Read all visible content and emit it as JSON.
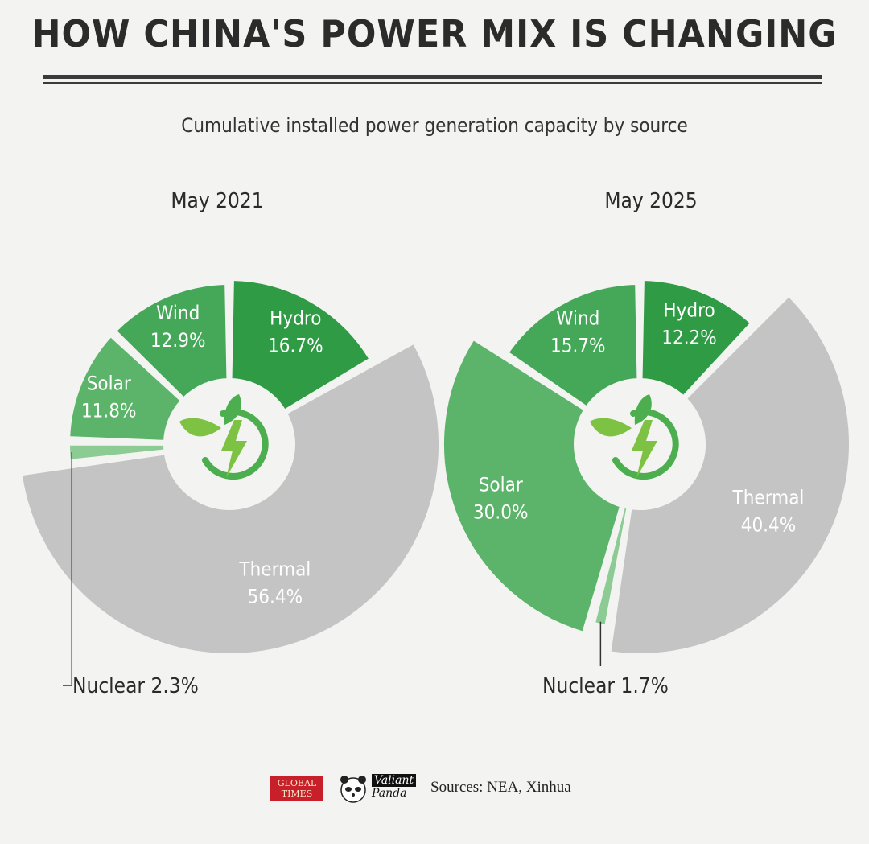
{
  "title": "HOW CHINA'S POWER MIX IS CHANGING",
  "subtitle": "Cumulative installed power generation capacity by source",
  "colors": {
    "hydro": "#2f9b45",
    "wind": "#45a858",
    "solar": "#5bb46a",
    "nuclear": "#8ccb93",
    "thermal": "#c4c4c4",
    "icon_green": "#4cae4f",
    "icon_bolt": "#7dc242"
  },
  "chart_data": [
    {
      "type": "pie",
      "period": "May 2021",
      "title": "May 2021",
      "slices": [
        {
          "name": "Hydro",
          "value": 16.7,
          "label": "16.7%"
        },
        {
          "name": "Thermal",
          "value": 56.4,
          "label": "56.4%"
        },
        {
          "name": "Nuclear",
          "value": 2.3,
          "label": "2.3%"
        },
        {
          "name": "Solar",
          "value": 11.8,
          "label": "11.8%"
        },
        {
          "name": "Wind",
          "value": 12.9,
          "label": "12.9%"
        }
      ],
      "nuclear_callout": "Nuclear 2.3%"
    },
    {
      "type": "pie",
      "period": "May 2025",
      "title": "May 2025",
      "slices": [
        {
          "name": "Hydro",
          "value": 12.2,
          "label": "12.2%"
        },
        {
          "name": "Thermal",
          "value": 40.4,
          "label": "40.4%"
        },
        {
          "name": "Nuclear",
          "value": 1.7,
          "label": "1.7%"
        },
        {
          "name": "Solar",
          "value": 30.0,
          "label": "30.0%"
        },
        {
          "name": "Wind",
          "value": 15.7,
          "label": "15.7%"
        }
      ],
      "nuclear_callout": "Nuclear 1.7%"
    }
  ],
  "footer": {
    "logo1": "GLOBAL TIMES",
    "logo2_line1": "Valiant",
    "logo2_line2": "Panda",
    "sources": "Sources: NEA, Xinhua"
  }
}
